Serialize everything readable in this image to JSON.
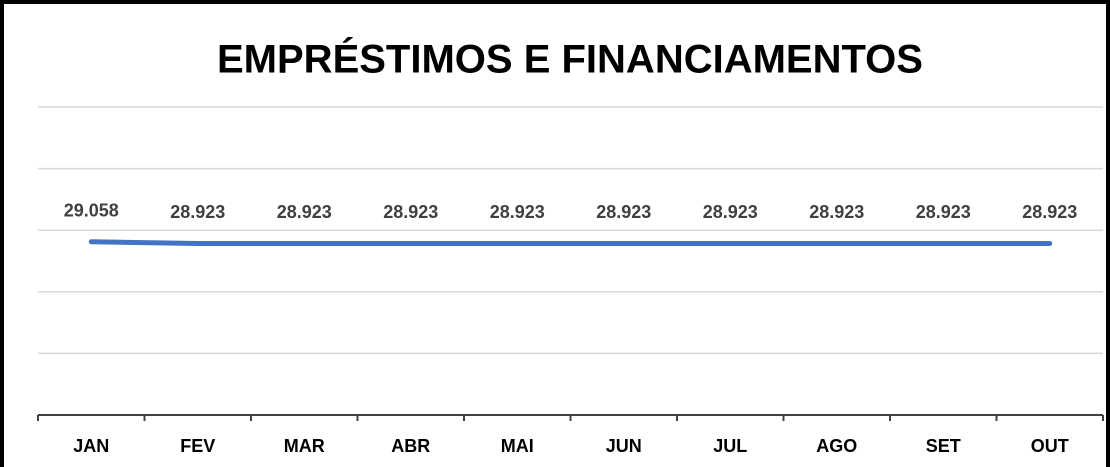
{
  "chart_data": {
    "type": "line",
    "title": "EMPRÉSTIMOS E FINANCIAMENTOS",
    "categories": [
      "JAN",
      "FEV",
      "MAR",
      "ABR",
      "MAI",
      "JUN",
      "JUL",
      "AGO",
      "SET",
      "OUT"
    ],
    "series": [
      {
        "name": "Empréstimos e Financiamentos",
        "color": "#4472c4",
        "values": [
          29058,
          28923,
          28923,
          28923,
          28923,
          28923,
          28923,
          28923,
          28923,
          28923
        ],
        "value_labels": [
          "29.058",
          "28.923",
          "28.923",
          "28.923",
          "28.923",
          "28.923",
          "28.923",
          "28.923",
          "28.923",
          "28.923"
        ]
      }
    ],
    "ylim": [
      15000,
      40000
    ],
    "yticks": [
      15000,
      20000,
      25000,
      30000,
      35000,
      40000
    ],
    "grid": true
  }
}
